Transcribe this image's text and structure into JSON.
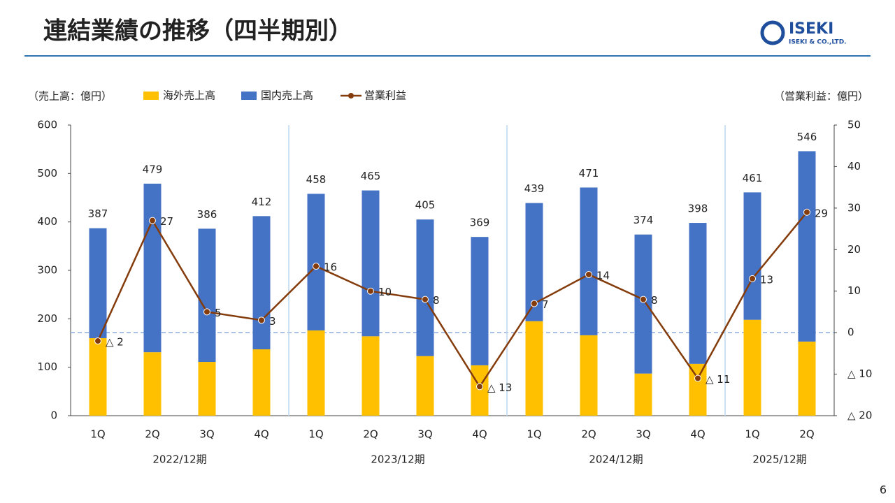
{
  "header": {
    "title": "連結業績の推移（四半期別）",
    "logo": "ISEKI",
    "company": "ISEKI & CO.,LTD."
  },
  "page_number": "6",
  "chart_data": {
    "type": "bar",
    "stacked": true,
    "y_unit_label": "（売上高：億円）",
    "y2_unit_label": "（営業利益：億円）",
    "groups": [
      {
        "label": "2022/12期",
        "categories": [
          "1Q",
          "2Q",
          "3Q",
          "4Q"
        ]
      },
      {
        "label": "2023/12期",
        "categories": [
          "1Q",
          "2Q",
          "3Q",
          "4Q"
        ]
      },
      {
        "label": "2024/12期",
        "categories": [
          "1Q",
          "2Q",
          "3Q",
          "4Q"
        ]
      },
      {
        "label": "2025/12期",
        "categories": [
          "1Q",
          "2Q"
        ]
      }
    ],
    "series": [
      {
        "name": "海外売上高",
        "color": "#ffc000",
        "values": [
          160,
          131,
          111,
          137,
          176,
          164,
          123,
          104,
          195,
          166,
          87,
          107,
          198,
          153
        ]
      },
      {
        "name": "国内売上高",
        "color": "#4472c4",
        "values": [
          227,
          348,
          275,
          275,
          282,
          301,
          282,
          265,
          244,
          305,
          287,
          291,
          263,
          393
        ]
      },
      {
        "name": "営業利益",
        "type": "line",
        "axis": "y2",
        "color": "#843c0c",
        "values": [
          -2,
          27,
          5,
          3,
          16,
          10,
          8,
          -13,
          7,
          14,
          8,
          -11,
          13,
          29
        ],
        "value_labels": [
          "△ 2",
          "27",
          "5",
          "3",
          "16",
          "10",
          "8",
          "△ 13",
          "7",
          "14",
          "8",
          "△ 11",
          "13",
          "29"
        ]
      }
    ],
    "totals": [
      387,
      479,
      386,
      412,
      458,
      465,
      405,
      369,
      439,
      471,
      374,
      398,
      461,
      546
    ],
    "ylim": [
      0,
      600
    ],
    "yticks": [
      0,
      100,
      200,
      300,
      400,
      500,
      600
    ],
    "y2lim": [
      -20,
      50
    ],
    "y2ticks": [
      {
        "value": -20,
        "label": "△ 20"
      },
      {
        "value": -10,
        "label": "△ 10"
      },
      0,
      10,
      20,
      30,
      40,
      50
    ]
  }
}
